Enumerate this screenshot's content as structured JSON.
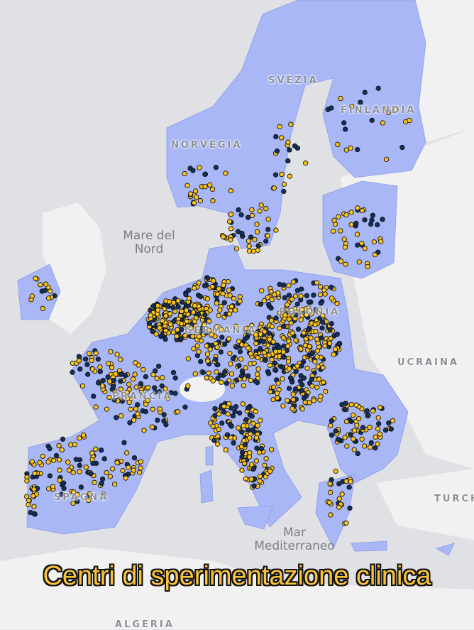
{
  "map": {
    "title": "Centri di sperimentazione clinica",
    "labels": {
      "svezia": "SVEZIA",
      "finlandia": "FINLANDIA",
      "norvegia": "NORVEGIA",
      "polonia": "POLONIA",
      "germania": "GERMANIA",
      "francia": "FRANCIA",
      "spagna": "SPAGNA",
      "ucraina": "UCRAINA",
      "turchia": "TURCHIA",
      "algeria": "ALGERIA",
      "mare_del_nord": "Mare del Nord",
      "mar_mediterraneo": "Mar Mediterraneo"
    },
    "colors": {
      "eu_fill": "#a9b7f7",
      "land": "#f1f1f2",
      "sea": "#e0e1e5",
      "site_primary": "#f9c31f",
      "site_secondary": "#14305a"
    },
    "marker_types": [
      "site-yellow",
      "site-navy"
    ]
  }
}
